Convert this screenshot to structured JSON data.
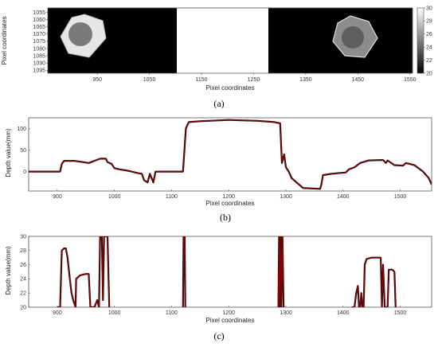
{
  "colors": {
    "series_line": "#8b0000",
    "series_shadow": "#111111",
    "frame": "#555555",
    "background": "#ffffff"
  },
  "chart_data": [
    {
      "type": "heatmap",
      "caption": "(a)",
      "xlabel": "Pixel coordinates",
      "ylabel": "Pixel coordinates",
      "xlim": [
        855,
        1555
      ],
      "ylim": [
        1052,
        1097
      ],
      "xticks": [
        950,
        1050,
        1150,
        1250,
        1350,
        1450,
        1550
      ],
      "yticks": [
        1055,
        1060,
        1065,
        1070,
        1075,
        1080,
        1085,
        1090,
        1095
      ],
      "colorbar": {
        "range": [
          20,
          30
        ],
        "ticks": [
          20,
          22,
          24,
          26,
          28,
          30
        ]
      },
      "regions": [
        {
          "shape": "hexagon",
          "x": 960,
          "y": 1075,
          "value": 30
        },
        {
          "shape": "circle",
          "x": 957,
          "y": 1073,
          "value": 24
        },
        {
          "shape": "rect",
          "x": [
            1125,
            1290
          ],
          "y": [
            1052,
            1097
          ],
          "value": 30
        },
        {
          "shape": "hexagon",
          "x": 1455,
          "y": 1075,
          "value": 26
        },
        {
          "shape": "circle",
          "x": 1452,
          "y": 1073,
          "value": 22
        }
      ]
    },
    {
      "type": "line",
      "caption": "(b)",
      "xlabel": "Pixel coordinates",
      "ylabel": "Depth value(mm)",
      "xlim": [
        850,
        1555
      ],
      "ylim": [
        -45,
        125
      ],
      "xticks": [
        900,
        1000,
        1100,
        1200,
        1300,
        1400,
        1500
      ],
      "yticks": [
        0,
        50,
        100
      ],
      "series": [
        {
          "values": [
            [
              850,
              0
            ],
            [
              905,
              0
            ],
            [
              908,
              18
            ],
            [
              912,
              25
            ],
            [
              930,
              25
            ],
            [
              945,
              22
            ],
            [
              955,
              20
            ],
            [
              965,
              25
            ],
            [
              975,
              30
            ],
            [
              985,
              30
            ],
            [
              988,
              22
            ],
            [
              995,
              18
            ],
            [
              1000,
              8
            ],
            [
              1010,
              5
            ],
            [
              1020,
              3
            ],
            [
              1030,
              0
            ],
            [
              1040,
              -3
            ],
            [
              1048,
              -5
            ],
            [
              1052,
              -20
            ],
            [
              1058,
              -25
            ],
            [
              1062,
              -5
            ],
            [
              1068,
              -25
            ],
            [
              1072,
              0
            ],
            [
              1120,
              0
            ],
            [
              1125,
              100
            ],
            [
              1130,
              115
            ],
            [
              1150,
              117
            ],
            [
              1200,
              120
            ],
            [
              1250,
              118
            ],
            [
              1280,
              115
            ],
            [
              1290,
              112
            ],
            [
              1293,
              20
            ],
            [
              1297,
              40
            ],
            [
              1300,
              10
            ],
            [
              1305,
              0
            ],
            [
              1310,
              -15
            ],
            [
              1330,
              -38
            ],
            [
              1360,
              -40
            ],
            [
              1362,
              -30
            ],
            [
              1365,
              -8
            ],
            [
              1380,
              -5
            ],
            [
              1395,
              -3
            ],
            [
              1405,
              -2
            ],
            [
              1410,
              5
            ],
            [
              1420,
              10
            ],
            [
              1430,
              20
            ],
            [
              1445,
              26
            ],
            [
              1470,
              27
            ],
            [
              1475,
              20
            ],
            [
              1478,
              26
            ],
            [
              1490,
              15
            ],
            [
              1505,
              14
            ],
            [
              1510,
              20
            ],
            [
              1525,
              15
            ],
            [
              1540,
              0
            ],
            [
              1550,
              -15
            ],
            [
              1555,
              -30
            ]
          ]
        }
      ]
    },
    {
      "type": "line",
      "caption": "(c)",
      "xlabel": "Pixel coordinates",
      "ylabel": "Depth value(mm)",
      "xlim": [
        850,
        1555
      ],
      "ylim": [
        20,
        30
      ],
      "xticks": [
        900,
        1000,
        1100,
        1200,
        1300,
        1400,
        1500
      ],
      "yticks": [
        20,
        22,
        24,
        26,
        28,
        30
      ],
      "series": [
        {
          "values": [
            [
              900,
              20
            ],
            [
              905,
              20
            ],
            [
              908,
              28
            ],
            [
              912,
              28.3
            ],
            [
              915,
              28.3
            ],
            [
              918,
              27
            ],
            [
              922,
              24
            ],
            [
              925,
              22
            ],
            [
              928,
              21
            ],
            [
              932,
              20
            ],
            [
              933,
              24
            ],
            [
              940,
              24.5
            ],
            [
              950,
              24.7
            ],
            [
              955,
              24.7
            ],
            [
              958,
              20
            ],
            [
              965,
              20
            ],
            [
              970,
              21
            ],
            [
              973,
              20
            ],
            [
              975,
              30
            ],
            [
              978,
              30
            ],
            [
              980,
              21
            ],
            [
              982,
              30
            ],
            [
              988,
              30
            ],
            [
              991,
              20
            ]
          ]
        },
        {
          "values": [
            [
              1120,
              20
            ],
            [
              1121,
              30
            ],
            [
              1123,
              30
            ],
            [
              1124,
              20
            ]
          ]
        },
        {
          "values": [
            [
              1287,
              20
            ],
            [
              1288,
              30
            ],
            [
              1289,
              20
            ],
            [
              1291,
              30
            ],
            [
              1292,
              20
            ],
            [
              1294,
              30
            ],
            [
              1296,
              20
            ]
          ]
        },
        {
          "values": [
            [
              1415,
              20
            ],
            [
              1420,
              20
            ],
            [
              1423,
              22
            ],
            [
              1426,
              23
            ],
            [
              1428,
              20
            ],
            [
              1430,
              20
            ],
            [
              1432,
              22
            ],
            [
              1434,
              20
            ],
            [
              1436,
              20
            ],
            [
              1438,
              26
            ],
            [
              1441,
              26.8
            ],
            [
              1450,
              27
            ],
            [
              1460,
              27
            ],
            [
              1466,
              27
            ],
            [
              1468,
              20
            ],
            [
              1470,
              26
            ],
            [
              1473,
              20
            ],
            [
              1478,
              20
            ],
            [
              1480,
              25.3
            ],
            [
              1486,
              25.3
            ],
            [
              1490,
              25
            ],
            [
              1492,
              20
            ]
          ]
        }
      ]
    }
  ]
}
